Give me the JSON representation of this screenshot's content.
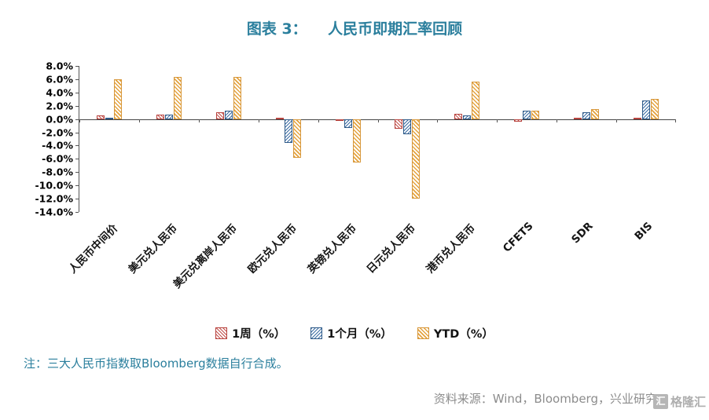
{
  "title": "图表 3：    人民币即期汇率回顾",
  "note": "注：三大人民币指数取Bloomberg数据自行合成。",
  "source": "资料来源：Wind，Bloomberg，兴业研究",
  "watermark": "格隆汇",
  "watermark_glyph": "汇",
  "chart_data": {
    "type": "bar",
    "title": "图表 3： 人民币即期汇率回顾",
    "categories": [
      "人民币中间价",
      "美元兑人民币",
      "美元兑离岸人民币",
      "欧元兑人民币",
      "英镑兑人民币",
      "日元兑人民币",
      "港币兑人民币",
      "CFETS",
      "SDR",
      "BIS"
    ],
    "series": [
      {
        "name": "1周（%）",
        "color": "#C2504B",
        "hatch": "diagonal-forward",
        "values": [
          0.5,
          0.7,
          1.0,
          0.15,
          -0.3,
          -1.5,
          0.8,
          -0.4,
          0.15,
          0.2
        ]
      },
      {
        "name": "1个月（%）",
        "color": "#3C6DA3",
        "hatch": "diagonal-back",
        "values": [
          0.15,
          0.7,
          1.3,
          -3.6,
          -1.3,
          -2.3,
          0.5,
          1.2,
          1.0,
          2.8
        ]
      },
      {
        "name": "YTD（%）",
        "color": "#E4A33F",
        "hatch": "diagonal-forward",
        "values": [
          6.0,
          6.3,
          6.3,
          -5.8,
          -6.5,
          -12.0,
          5.6,
          1.3,
          1.5,
          3.0
        ]
      }
    ],
    "ylim": [
      -14,
      8
    ],
    "ytick_step": 2,
    "ytick_format": "0.0%",
    "grid": false,
    "legend_position": "bottom"
  }
}
